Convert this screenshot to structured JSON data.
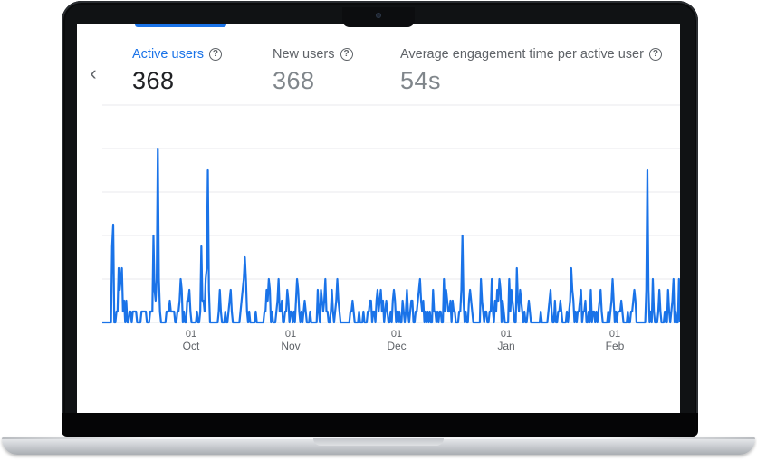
{
  "metrics": [
    {
      "label": "Active users",
      "value": "368",
      "active": true
    },
    {
      "label": "New users",
      "value": "368",
      "active": false
    },
    {
      "label": "Average engagement time per active user",
      "value": "54s",
      "active": false
    }
  ],
  "colors": {
    "accent": "#1a73e8",
    "line": "#1a73e8",
    "grid": "#e8eaed",
    "text_secondary": "#5f6368"
  },
  "icons": {
    "back": "chevron-left-icon",
    "help": "question-circle-icon"
  },
  "chart_data": {
    "type": "line",
    "title": "",
    "xlabel": "",
    "ylabel": "",
    "x_ticks": [
      {
        "day": "01",
        "month": "Oct"
      },
      {
        "day": "01",
        "month": "Nov"
      },
      {
        "day": "01",
        "month": "Dec"
      },
      {
        "day": "01",
        "month": "Jan"
      },
      {
        "day": "01",
        "month": "Feb"
      }
    ],
    "grid": true,
    "ylim": [
      0,
      20
    ],
    "series": [
      {
        "values": [
          0,
          0,
          0,
          0,
          0,
          0,
          0,
          0,
          0,
          7,
          9,
          0,
          0,
          1,
          1,
          5,
          3,
          4,
          5,
          1,
          2,
          0,
          2,
          0,
          0,
          1,
          1,
          0,
          1,
          1,
          1,
          1,
          0,
          0,
          0,
          0,
          1,
          1,
          1,
          1,
          1,
          0,
          0,
          0,
          1,
          1,
          1,
          8,
          3,
          2,
          4,
          16,
          4,
          1,
          0,
          0,
          0,
          0,
          0,
          1,
          1,
          1,
          2,
          1,
          1,
          1,
          1,
          0,
          0,
          1,
          1,
          2,
          4,
          3,
          0,
          1,
          0,
          0,
          2,
          2,
          3,
          1,
          0,
          0,
          0,
          0,
          0,
          1,
          0,
          0,
          1,
          7,
          2,
          2,
          1,
          4,
          5,
          14,
          3,
          0,
          0,
          0,
          0,
          0,
          0,
          0,
          0,
          1,
          3,
          1,
          0,
          0,
          0,
          1,
          0,
          0,
          1,
          2,
          3,
          1,
          0,
          0,
          0,
          0,
          0,
          0,
          0,
          1,
          2,
          3,
          4,
          6,
          4,
          1,
          0,
          1,
          0,
          0,
          0,
          0,
          0,
          1,
          0,
          0,
          0,
          0,
          0,
          0,
          0,
          1,
          1,
          3,
          2,
          4,
          3,
          0,
          1,
          0,
          0,
          0,
          1,
          2,
          4,
          1,
          1,
          2,
          0,
          0,
          1,
          1,
          3,
          2,
          0,
          1,
          1,
          0,
          1,
          0,
          2,
          4,
          3,
          1,
          0,
          1,
          0,
          1,
          2,
          1,
          0,
          0,
          0,
          1,
          0,
          0,
          0,
          0,
          0,
          0,
          3,
          1,
          0,
          3,
          2,
          1,
          2,
          4,
          1,
          1,
          0,
          0,
          1,
          3,
          1,
          0,
          1,
          2,
          4,
          2,
          1,
          0,
          0,
          0,
          0,
          0,
          0,
          0,
          0,
          0,
          1,
          1,
          2,
          1,
          0,
          0,
          0,
          0,
          1,
          0,
          0,
          0,
          1,
          0,
          0,
          0,
          1,
          1,
          2,
          2,
          0,
          1,
          1,
          0,
          2,
          3,
          1,
          2,
          3,
          1,
          2,
          0,
          1,
          2,
          1,
          0,
          0,
          1,
          0,
          2,
          3,
          2,
          0,
          1,
          0,
          1,
          0,
          0,
          2,
          1,
          0,
          1,
          3,
          1,
          0,
          1,
          2,
          2,
          0,
          0,
          1,
          1,
          2,
          3,
          4,
          2,
          1,
          2,
          0,
          1,
          0,
          1,
          0,
          1,
          0,
          0,
          3,
          1,
          1,
          0,
          1,
          0,
          1,
          1,
          0,
          0,
          4,
          1,
          3,
          2,
          1,
          1,
          2,
          0,
          2,
          1,
          1,
          0,
          0,
          0,
          1,
          1,
          3,
          8,
          2,
          0,
          1,
          0,
          0,
          2,
          3,
          2,
          1,
          0,
          0,
          0,
          0,
          0,
          0,
          0,
          4,
          2,
          1,
          0,
          1,
          1,
          0,
          0,
          1,
          1,
          4,
          1,
          0,
          2,
          1,
          3,
          2,
          4,
          3,
          0,
          2,
          1,
          0,
          0,
          0,
          0,
          4,
          1,
          3,
          2,
          1,
          0,
          0,
          5,
          2,
          1,
          3,
          2,
          1,
          0,
          1,
          0,
          0,
          1,
          2,
          1,
          0,
          0,
          0,
          0,
          0,
          0,
          0,
          0,
          0,
          1,
          0,
          0,
          0,
          0,
          0,
          0,
          1,
          2,
          3,
          1,
          0,
          0,
          2,
          0,
          0,
          1,
          1,
          2,
          1,
          0,
          0,
          0,
          0,
          1,
          0,
          1,
          2,
          5,
          3,
          2,
          0,
          1,
          0,
          1,
          1,
          2,
          3,
          0,
          1,
          1,
          2,
          0,
          0,
          1,
          0,
          3,
          0,
          1,
          1,
          0,
          1,
          0,
          1,
          2,
          3,
          1,
          0,
          0,
          0,
          0,
          0,
          1,
          0,
          1,
          2,
          4,
          2,
          0,
          1,
          0,
          1,
          1,
          1,
          2,
          1,
          0,
          0,
          0,
          0,
          1,
          0,
          0,
          1,
          1,
          2,
          3,
          2,
          0,
          0,
          0,
          0,
          0,
          0,
          0,
          0,
          0,
          3,
          14,
          3,
          0,
          1,
          0,
          4,
          1,
          0,
          0,
          0,
          1,
          3,
          1,
          0,
          0,
          0,
          1,
          0,
          0,
          3,
          1,
          0,
          1,
          2,
          4,
          0,
          1,
          0,
          0,
          4,
          0
        ]
      }
    ]
  }
}
